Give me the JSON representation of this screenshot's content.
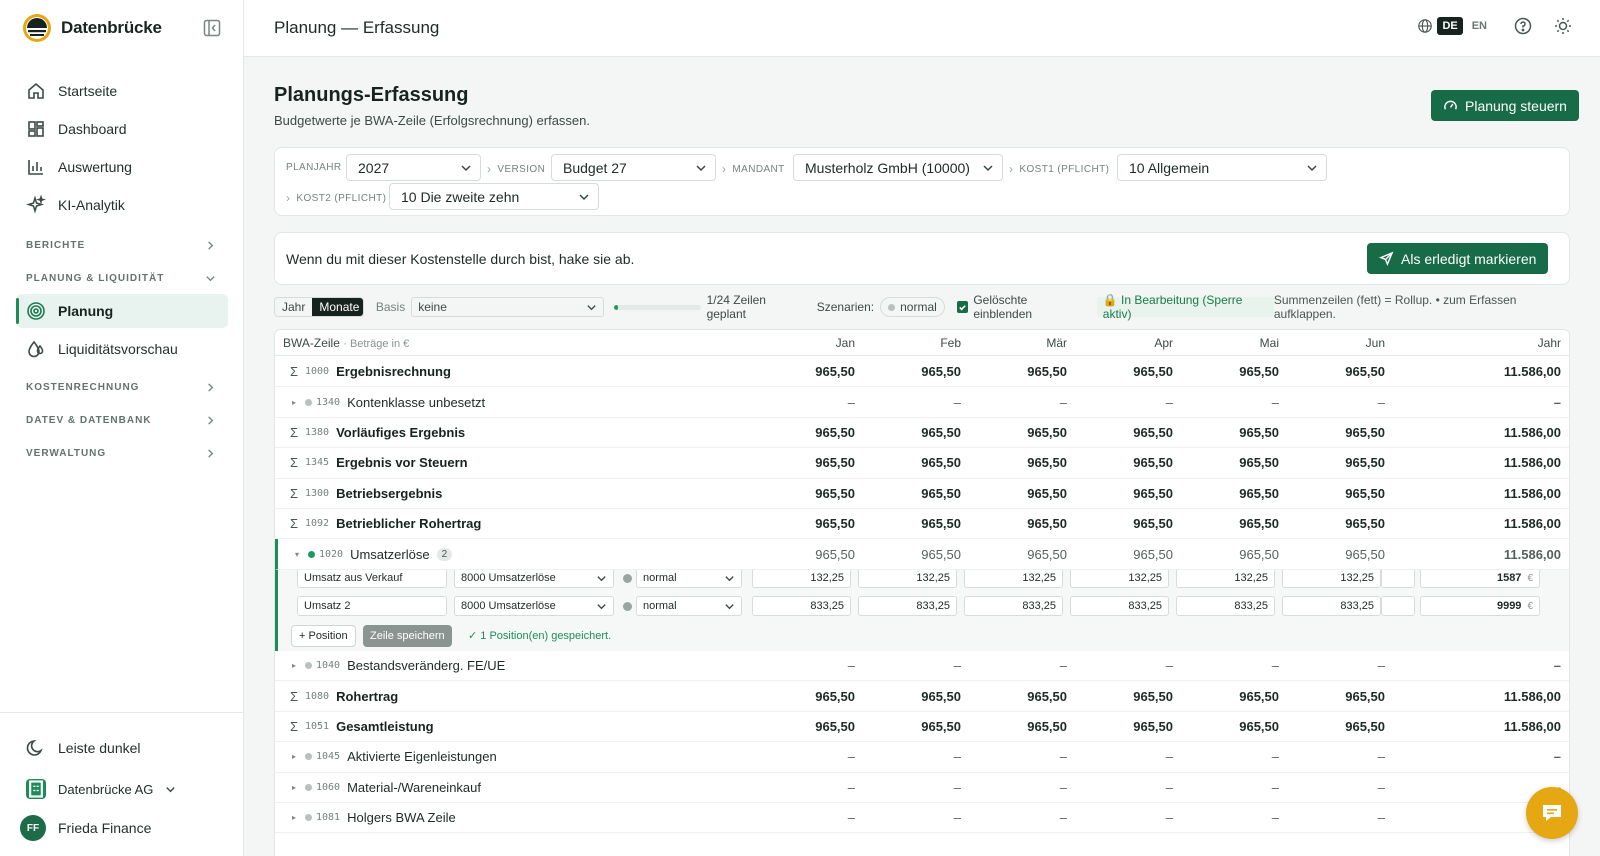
{
  "app": {
    "name": "Datenbrücke"
  },
  "nav": {
    "items": [
      {
        "label": "Startseite",
        "icon": "home-icon"
      },
      {
        "label": "Dashboard",
        "icon": "dashboard-icon"
      },
      {
        "label": "Auswertung",
        "icon": "chart-icon"
      },
      {
        "label": "KI-Analytik",
        "icon": "sparkle-icon"
      }
    ],
    "sections": {
      "berichte": "BERICHTE",
      "planung": "PLANUNG & LIQUIDITÄT",
      "kosten": "KOSTENRECHNUNG",
      "datev": "DATEV & DATENBANK",
      "verwaltung": "VERWALTUNG"
    },
    "planung_items": [
      {
        "label": "Planung",
        "active": true
      },
      {
        "label": "Liquiditätsvorschau"
      }
    ],
    "footer": {
      "theme": "Leiste dunkel",
      "org": "Datenbrücke AG",
      "user": "Frieda Finance",
      "initials": "FF"
    }
  },
  "header": {
    "title": "Planung — Erfassung",
    "lang_de": "DE",
    "lang_en": "EN"
  },
  "page": {
    "title": "Planungs-Erfassung",
    "subtitle": "Budgetwerte je BWA-Zeile (Erfolgsrechnung) erfassen.",
    "steer_button": "Planung steuern"
  },
  "filters": {
    "planjahr": {
      "label": "PLANJAHR",
      "value": "2027"
    },
    "version": {
      "label": "VERSION",
      "value": "Budget 27"
    },
    "mandant": {
      "label": "MANDANT",
      "value": "Musterholz GmbH (10000)"
    },
    "kost1": {
      "label": "KOST1 (PFLICHT)",
      "value": "10 Allgemein"
    },
    "kost2": {
      "label": "KOST2 (PFLICHT)",
      "value": "10 Die zweite zehn"
    }
  },
  "done_card": {
    "text": "Wenn du mit dieser Kostenstelle durch bist, hake sie ab.",
    "button": "Als erledigt markieren"
  },
  "toolbar": {
    "year": "Jahr",
    "months": "Monate",
    "basis_label": "Basis",
    "basis_value": "keine",
    "progress_fraction": 0.0417,
    "progress_text": "1/24 Zeilen geplant",
    "scen_label": "Szenarien:",
    "scen_value": "normal",
    "deleted": "Gelöschte einblenden",
    "lock": "🔒 In Bearbeitung (Sperre aktiv)",
    "hint": "Summenzeilen (fett) = Rollup. • zum Erfassen aufklappen."
  },
  "table": {
    "col_label": "BWA-Zeile",
    "col_unit": "· Beträge in €",
    "months": [
      "Jan",
      "Feb",
      "Mär",
      "Apr",
      "Mai",
      "Jun"
    ],
    "year": "Jahr",
    "rows_top": [
      {
        "sym": "Σ",
        "code": "1000",
        "label": "Ergebnisrechnung",
        "type": "sum",
        "vals": [
          "965,50",
          "965,50",
          "965,50",
          "965,50",
          "965,50",
          "965,50"
        ],
        "year": "11.586,00"
      },
      {
        "sym": "▸",
        "code": "1340",
        "label": "Kontenklasse unbesetzt",
        "type": "leaf",
        "vals": [
          "–",
          "–",
          "–",
          "–",
          "–",
          "–"
        ],
        "year": "–"
      },
      {
        "sym": "Σ",
        "code": "1380",
        "label": "Vorläufiges Ergebnis",
        "type": "sum",
        "vals": [
          "965,50",
          "965,50",
          "965,50",
          "965,50",
          "965,50",
          "965,50"
        ],
        "year": "11.586,00"
      },
      {
        "sym": "Σ",
        "code": "1345",
        "label": "Ergebnis vor Steuern",
        "type": "sum",
        "vals": [
          "965,50",
          "965,50",
          "965,50",
          "965,50",
          "965,50",
          "965,50"
        ],
        "year": "11.586,00"
      },
      {
        "sym": "Σ",
        "code": "1300",
        "label": "Betriebsergebnis",
        "type": "sum",
        "vals": [
          "965,50",
          "965,50",
          "965,50",
          "965,50",
          "965,50",
          "965,50"
        ],
        "year": "11.586,00"
      },
      {
        "sym": "Σ",
        "code": "1092",
        "label": "Betrieblicher Rohertrag",
        "type": "sum",
        "vals": [
          "965,50",
          "965,50",
          "965,50",
          "965,50",
          "965,50",
          "965,50"
        ],
        "year": "11.586,00"
      }
    ],
    "expanded": {
      "sym": "▾",
      "code": "1020",
      "label": "Umsatzerlöse",
      "count": "2",
      "vals": [
        "965,50",
        "965,50",
        "965,50",
        "965,50",
        "965,50",
        "965,50"
      ],
      "year": "11.586,00"
    },
    "positions": [
      {
        "name": "Umsatz aus Verkauf",
        "account": "8000 Umsatzerlöse",
        "scenario": "normal",
        "vals": [
          "132,25",
          "132,25",
          "132,25",
          "132,25",
          "132,25",
          "132,25"
        ],
        "year": "1587",
        "cur": "€"
      },
      {
        "name": "Umsatz 2",
        "account": "8000 Umsatzerlöse",
        "scenario": "normal",
        "vals": [
          "833,25",
          "833,25",
          "833,25",
          "833,25",
          "833,25",
          "833,25"
        ],
        "year": "9999",
        "cur": "€"
      }
    ],
    "add_position": "+ Position",
    "save_row": "Zeile speichern",
    "saved_msg": "✓ 1 Position(en) gespeichert.",
    "rows_bottom": [
      {
        "sym": "▸",
        "code": "1040",
        "label": "Bestandsveränderg. FE/UE",
        "type": "leaf",
        "vals": [
          "–",
          "–",
          "–",
          "–",
          "–",
          "–"
        ],
        "year": "–"
      },
      {
        "sym": "Σ",
        "code": "1080",
        "label": "Rohertrag",
        "type": "sum",
        "vals": [
          "965,50",
          "965,50",
          "965,50",
          "965,50",
          "965,50",
          "965,50"
        ],
        "year": "11.586,00"
      },
      {
        "sym": "Σ",
        "code": "1051",
        "label": "Gesamtleistung",
        "type": "sum",
        "vals": [
          "965,50",
          "965,50",
          "965,50",
          "965,50",
          "965,50",
          "965,50"
        ],
        "year": "11.586,00"
      },
      {
        "sym": "▸",
        "code": "1045",
        "label": "Aktivierte Eigenleistungen",
        "type": "leaf",
        "vals": [
          "–",
          "–",
          "–",
          "–",
          "–",
          "–"
        ],
        "year": "–"
      },
      {
        "sym": "▸",
        "code": "1060",
        "label": "Material-/Wareneinkauf",
        "type": "leaf",
        "vals": [
          "–",
          "–",
          "–",
          "–",
          "–",
          "–"
        ],
        "year": "–"
      },
      {
        "sym": "▸",
        "code": "1081",
        "label": "Holgers BWA Zeile",
        "type": "leaf",
        "vals": [
          "–",
          "–",
          "–",
          "–",
          "–",
          "–"
        ],
        "year": "–"
      }
    ]
  }
}
